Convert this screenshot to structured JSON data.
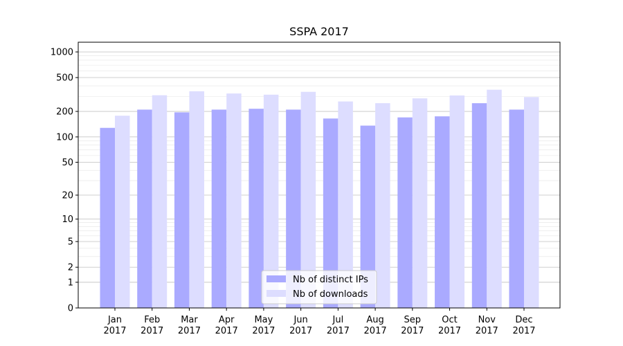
{
  "chart_data": {
    "type": "bar",
    "title": "SSPA 2017",
    "xlabel": "",
    "ylabel": "",
    "yscale": "log(1+y)",
    "ylim": [
      0,
      1300
    ],
    "yticks": [
      0,
      1,
      2,
      5,
      10,
      20,
      50,
      100,
      200,
      500,
      1000
    ],
    "ytick_labels": [
      "0",
      "1",
      "2",
      "5",
      "10",
      "20",
      "50",
      "100",
      "200",
      "500",
      "1000"
    ],
    "grid": true,
    "legend_position": "bottom-center",
    "categories": [
      [
        "Jan",
        "2017"
      ],
      [
        "Feb",
        "2017"
      ],
      [
        "Mar",
        "2017"
      ],
      [
        "Apr",
        "2017"
      ],
      [
        "May",
        "2017"
      ],
      [
        "Jun",
        "2017"
      ],
      [
        "Jul",
        "2017"
      ],
      [
        "Aug",
        "2017"
      ],
      [
        "Sep",
        "2017"
      ],
      [
        "Oct",
        "2017"
      ],
      [
        "Nov",
        "2017"
      ],
      [
        "Dec",
        "2017"
      ]
    ],
    "series": [
      {
        "name": "Nb of distinct IPs",
        "color": "#aaaaff",
        "values": [
          128,
          210,
          195,
          210,
          215,
          210,
          165,
          136,
          170,
          175,
          250,
          210
        ]
      },
      {
        "name": "Nb of downloads",
        "color": "#ddddff",
        "values": [
          178,
          310,
          345,
          325,
          315,
          340,
          262,
          250,
          285,
          308,
          360,
          295
        ]
      }
    ]
  }
}
